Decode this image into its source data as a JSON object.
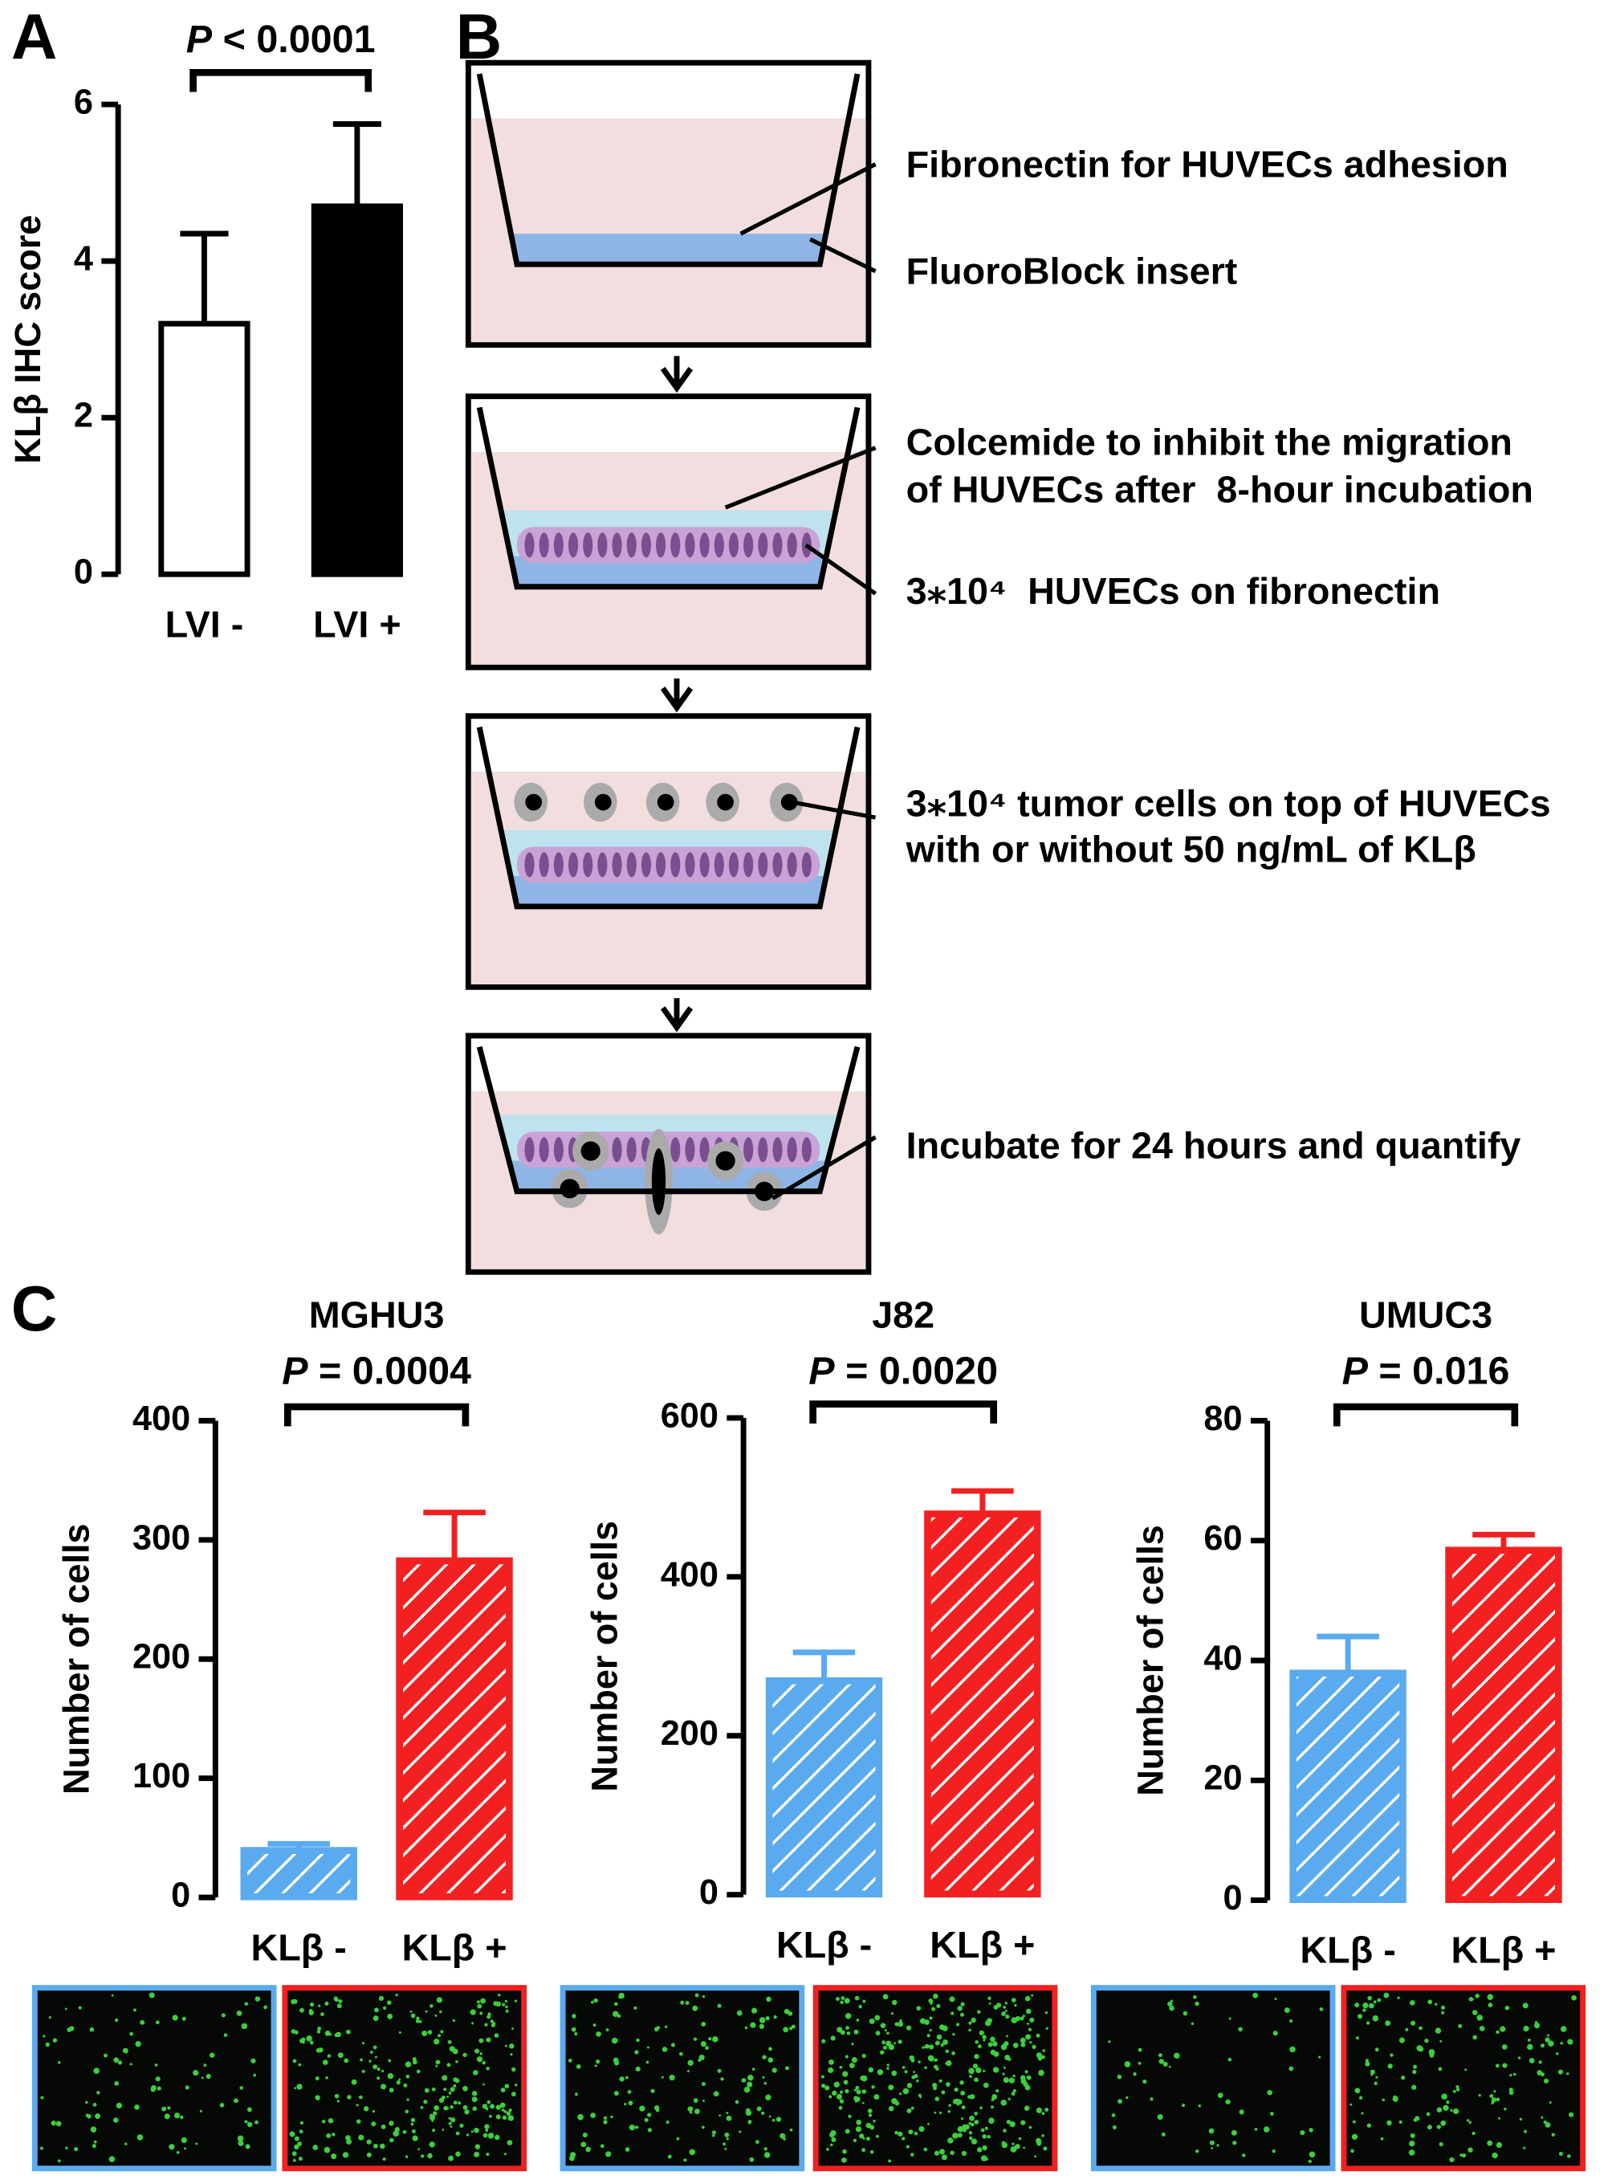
{
  "panel_labels": [
    "A",
    "B",
    "C"
  ],
  "chart_data": [
    {
      "type": "bar",
      "annotation": [
        "P",
        " < 0.0001"
      ],
      "ylabel": "KLβ IHC score",
      "categories": [
        "LVI -",
        "LVI +"
      ],
      "values": [
        3.2,
        4.7
      ],
      "errors": [
        1.15,
        1.05
      ],
      "colors": [
        "#ffffff",
        "#000000"
      ],
      "hatch": false,
      "ylim": [
        0,
        6
      ],
      "yticks": [
        0,
        2,
        4,
        6
      ]
    },
    {
      "type": "bar",
      "title": "MGHU3",
      "annotation": [
        "P",
        " = 0.0004"
      ],
      "ylabel": "Number of cells",
      "categories": [
        "KLβ -",
        "KLβ +"
      ],
      "values": [
        40,
        283
      ],
      "errors": [
        5,
        40
      ],
      "colors": [
        "#5aaaf0",
        "#f22020"
      ],
      "hatch": true,
      "ylim": [
        0,
        400
      ],
      "yticks": [
        0,
        100,
        200,
        300,
        400
      ]
    },
    {
      "type": "bar",
      "title": "J82",
      "annotation": [
        "P",
        " = 0.0020"
      ],
      "ylabel": "Number of cells",
      "categories": [
        "KLβ -",
        "KLβ +"
      ],
      "values": [
        270,
        480
      ],
      "errors": [
        35,
        28
      ],
      "colors": [
        "#5aaaf0",
        "#f22020"
      ],
      "hatch": true,
      "ylim": [
        0,
        600
      ],
      "yticks": [
        0,
        200,
        400,
        600
      ]
    },
    {
      "type": "bar",
      "title": "UMUC3",
      "annotation": [
        "P",
        " = 0.016"
      ],
      "ylabel": "Number of cells",
      "categories": [
        "KLβ -",
        "KLβ +"
      ],
      "values": [
        38,
        58.5
      ],
      "errors": [
        6,
        2.5
      ],
      "colors": [
        "#5aaaf0",
        "#f22020"
      ],
      "hatch": true,
      "ylim": [
        0,
        80
      ],
      "yticks": [
        0,
        20,
        40,
        60,
        80
      ]
    }
  ],
  "diagram": {
    "labels": [
      "Fibronectin for HUVECs adhesion",
      "FluoroBlock insert",
      "Colcemide to inhibit the migration",
      "of HUVECs after  8-hour incubation",
      "3⁎10⁴  HUVECs on fibronectin",
      "3⁎10⁴ tumor cells on top of HUVECs",
      "with or without 50 ng/mL of KLβ",
      "Incubate for 24 hours and quantify"
    ]
  }
}
